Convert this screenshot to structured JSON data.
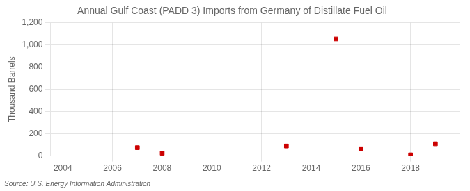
{
  "chart_data": {
    "type": "scatter",
    "title": "Annual Gulf Coast (PADD 3) Imports from Germany of Distillate Fuel Oil",
    "ylabel": "Thousand Barrels",
    "annotation": "Source: U.S. Energy Information Administration",
    "x": [
      2007,
      2008,
      2013,
      2015,
      2016,
      2018,
      2019
    ],
    "values": [
      75,
      25,
      90,
      1055,
      65,
      10,
      110
    ],
    "color": "#cc0000",
    "marker": "square",
    "xlim": [
      2003.5,
      2020.0
    ],
    "xticks": [
      2004,
      2006,
      2008,
      2010,
      2012,
      2014,
      2016,
      2018
    ],
    "ylim": [
      0,
      1200
    ],
    "yticks": [
      0,
      200,
      400,
      600,
      800,
      {
        "value": 1000,
        "label": "1,000"
      },
      {
        "value": 1200,
        "label": "1,200"
      }
    ],
    "grid": true
  }
}
